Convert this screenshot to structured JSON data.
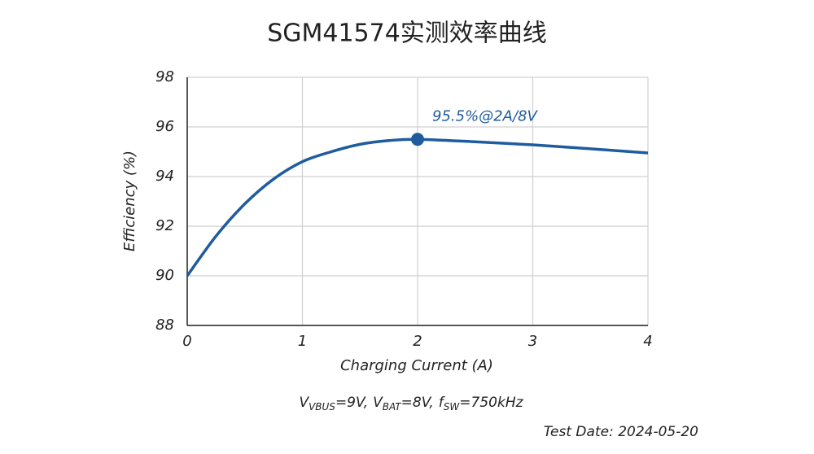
{
  "chart_data": {
    "type": "line",
    "title": "SGM41574实测效率曲线",
    "x_label": "Charging Current (A)",
    "y_label": "Efficiency (%)",
    "x": [
      0,
      0.25,
      0.5,
      0.75,
      1,
      1.25,
      1.5,
      1.75,
      2,
      2.5,
      3,
      3.5,
      4
    ],
    "series": [
      {
        "name": "Efficiency",
        "color": "#1f5c9e",
        "values": [
          90,
          91.6,
          92.9,
          93.9,
          94.6,
          95.0,
          95.3,
          95.45,
          95.5,
          95.4,
          95.28,
          95.12,
          94.95
        ]
      }
    ],
    "highlight": {
      "x": 2,
      "y": 95.5,
      "label": "95.5%@2A/8V"
    },
    "xlim": [
      0,
      4
    ],
    "xticks": [
      0,
      1,
      2,
      3,
      4
    ],
    "ylim": [
      88,
      98
    ],
    "yticks": [
      88,
      90,
      92,
      94,
      96,
      98
    ],
    "grid": true,
    "conditions": [
      {
        "symbol": "V",
        "subscript": "VBUS",
        "value": "=9V,"
      },
      {
        "symbol": "V",
        "subscript": "BAT",
        "value": "=8V,"
      },
      {
        "symbol": "f",
        "subscript": "SW",
        "value": "=750kHz"
      }
    ],
    "footnote": "Test Date: 2024-05-20"
  }
}
